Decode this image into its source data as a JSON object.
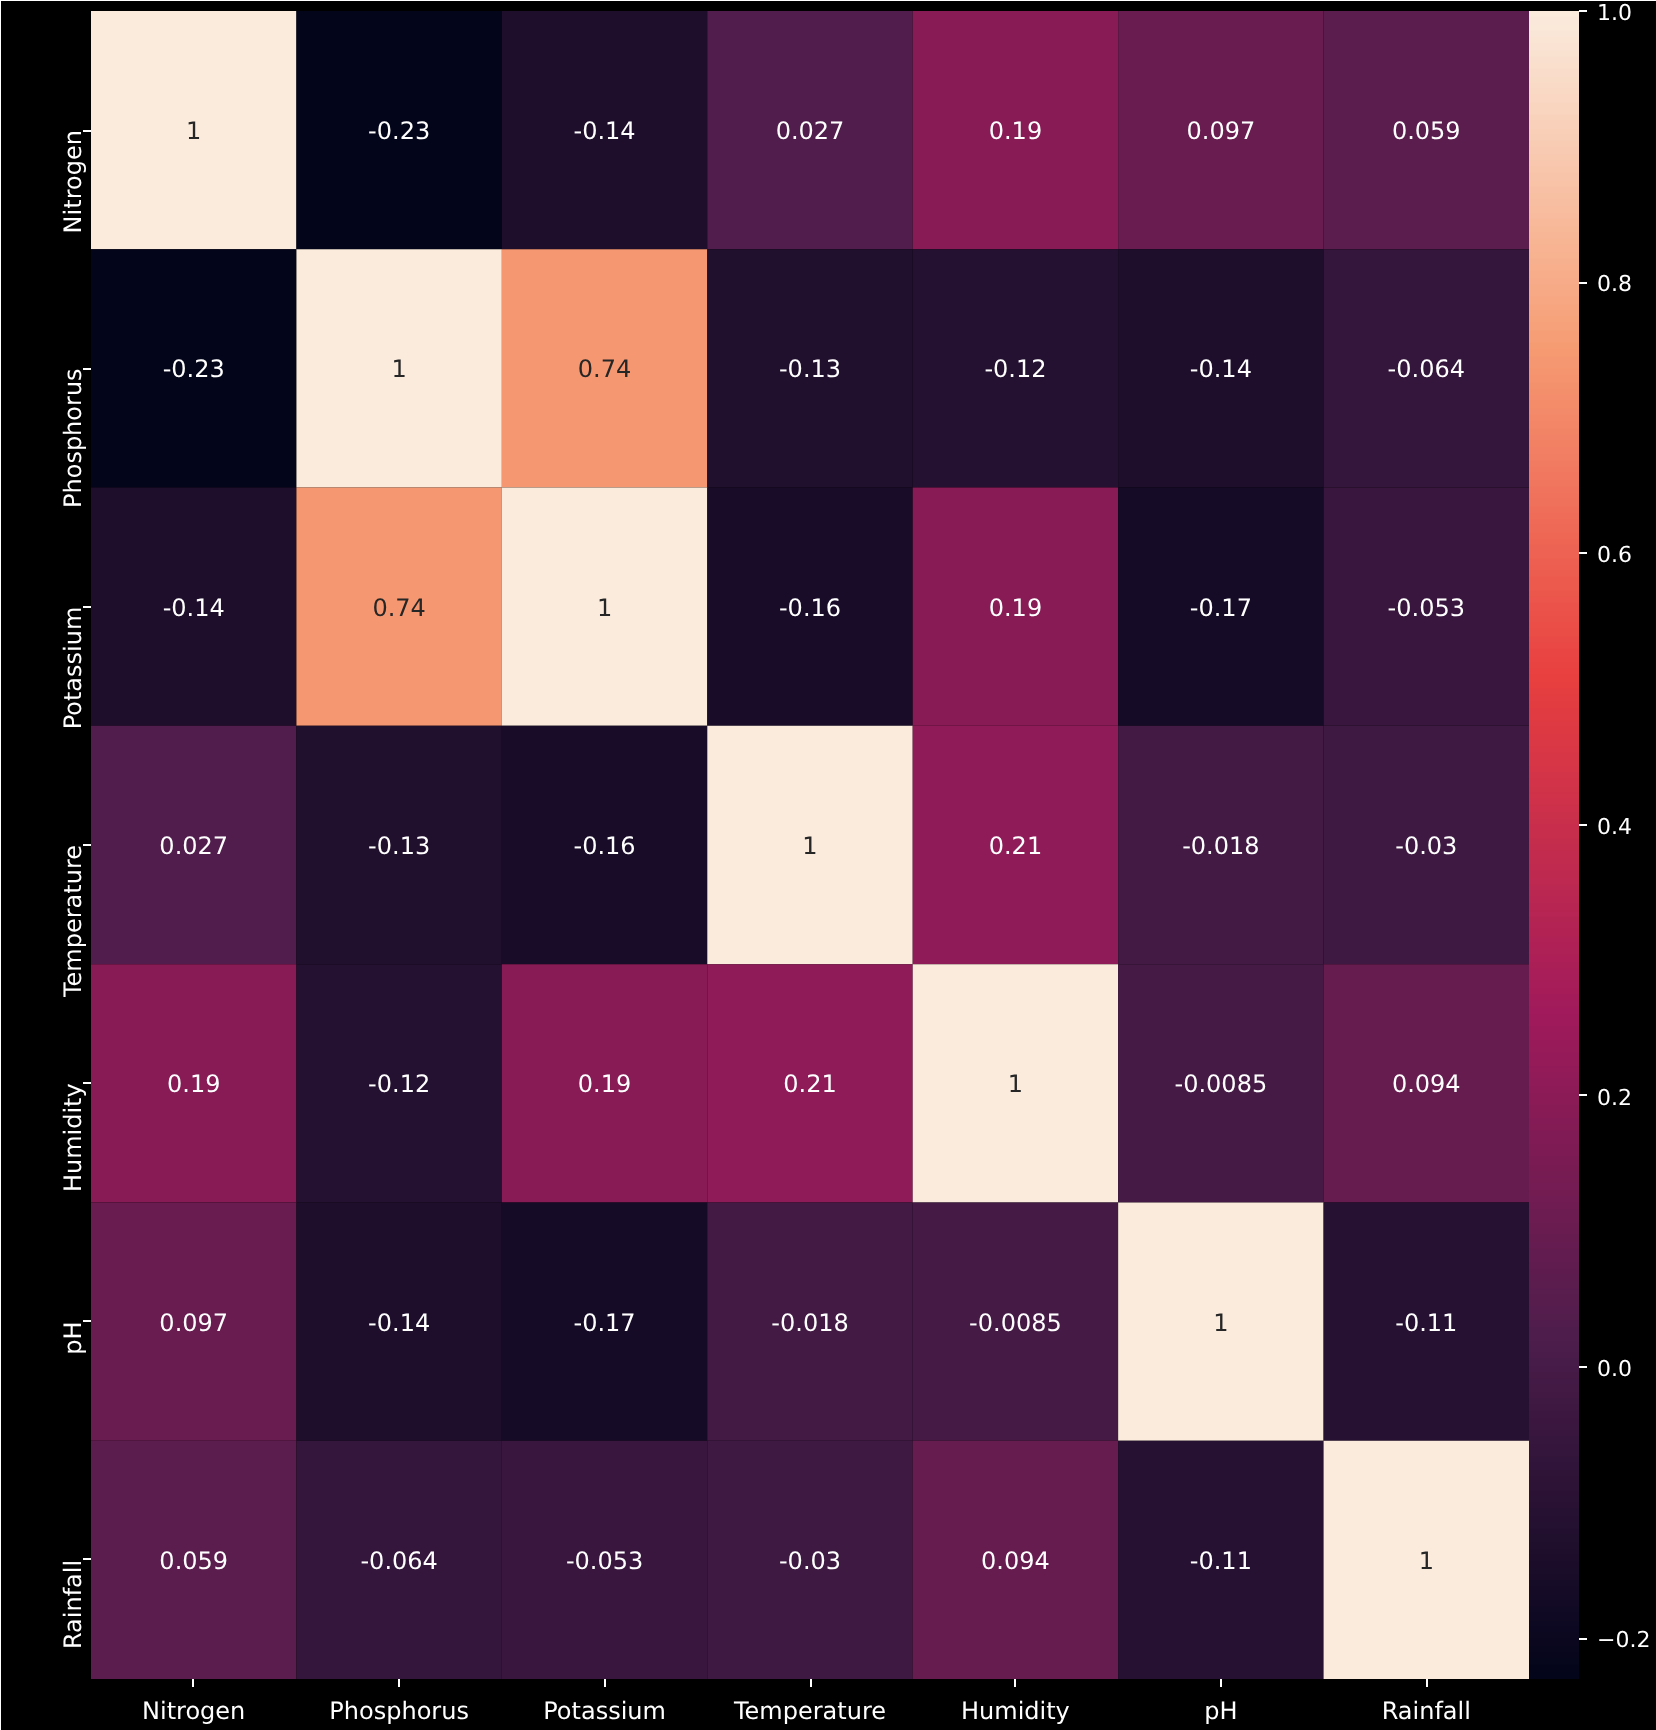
{
  "chart_data": {
    "type": "heatmap",
    "categories": [
      "Nitrogen",
      "Phosphorus",
      "Potassium",
      "Temperature",
      "Humidity",
      "pH",
      "Rainfall"
    ],
    "y_categories": [
      "Nitrogen",
      "Phosphorus",
      "Potassium",
      "Temperature",
      "Humidity",
      "pH",
      "Rainfall"
    ],
    "cells": [
      [
        1,
        -0.23,
        -0.14,
        0.027,
        0.19,
        0.097,
        0.059
      ],
      [
        -0.23,
        1,
        0.74,
        -0.13,
        -0.12,
        -0.14,
        -0.064
      ],
      [
        -0.14,
        0.74,
        1,
        -0.16,
        0.19,
        -0.17,
        -0.053
      ],
      [
        0.027,
        -0.13,
        -0.16,
        1,
        0.21,
        -0.018,
        -0.03
      ],
      [
        0.19,
        -0.12,
        0.19,
        0.21,
        1,
        -0.0085,
        0.094
      ],
      [
        0.097,
        -0.14,
        -0.17,
        -0.018,
        -0.0085,
        1,
        -0.11
      ],
      [
        0.059,
        -0.064,
        -0.053,
        -0.03,
        0.094,
        -0.11,
        1
      ]
    ],
    "data_labels": true,
    "clim": [
      -0.23,
      1
    ],
    "cticks": [
      {
        "value": -0.2,
        "label": "−0.2"
      },
      {
        "value": 0,
        "label": "0.0"
      },
      {
        "value": 0.2,
        "label": "0.2"
      },
      {
        "value": 0.4,
        "label": "0.4"
      },
      {
        "value": 0.6,
        "label": "0.6"
      },
      {
        "value": 0.8,
        "label": "0.8"
      },
      {
        "value": 1,
        "label": "1.0"
      }
    ]
  }
}
